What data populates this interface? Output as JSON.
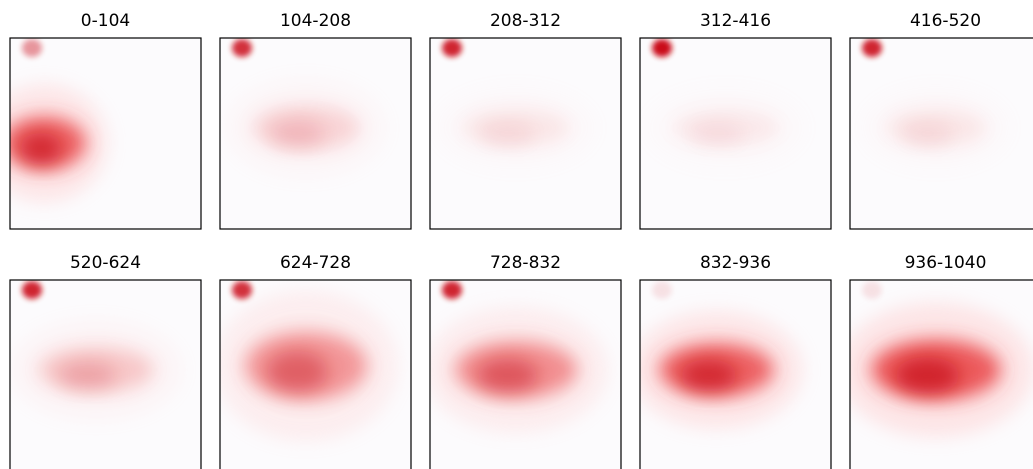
{
  "panels": [
    {
      "title": "0-104"
    },
    {
      "title": "104-208"
    },
    {
      "title": "208-312"
    },
    {
      "title": "312-416"
    },
    {
      "title": "416-520"
    },
    {
      "title": "520-624"
    },
    {
      "title": "624-728"
    },
    {
      "title": "728-832"
    },
    {
      "title": "832-936"
    },
    {
      "title": "936-1040"
    }
  ]
}
